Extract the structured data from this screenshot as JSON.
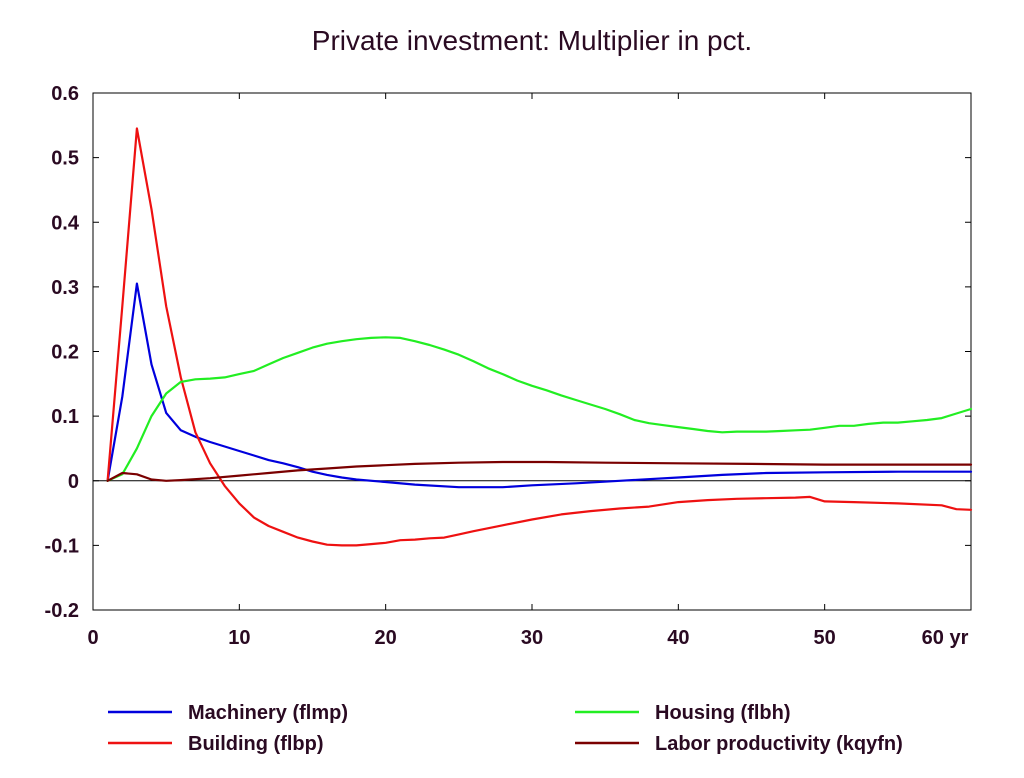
{
  "chart_data": {
    "type": "line",
    "title": "Private investment: Multiplier in pct.",
    "xlabel": "",
    "ylabel": "",
    "x_unit_label": "yr",
    "xlim": [
      0,
      60
    ],
    "ylim": [
      -0.2,
      0.6
    ],
    "x_ticks": [
      0,
      10,
      20,
      30,
      40,
      50,
      60
    ],
    "x_tick_labels": [
      "0",
      "10",
      "20",
      "30",
      "40",
      "50",
      "60 yr"
    ],
    "y_ticks": [
      0.6,
      0.5,
      0.4,
      0.3,
      0.2,
      0.1,
      0,
      -0.1,
      -0.2
    ],
    "y_tick_labels": [
      "0.6",
      "0.5",
      "0.4",
      "0.3",
      "0.2",
      "0.1",
      "0",
      "-0.1",
      "-0.2"
    ],
    "grid": false,
    "zero_line": true,
    "legend_position": "bottom",
    "series": [
      {
        "name": "Machinery (flmp)",
        "color": "#0000dd",
        "points": [
          [
            1,
            0
          ],
          [
            2,
            0.13
          ],
          [
            3,
            0.305
          ],
          [
            4,
            0.18
          ],
          [
            5,
            0.105
          ],
          [
            6,
            0.078
          ],
          [
            7,
            0.068
          ],
          [
            8,
            0.06
          ],
          [
            9,
            0.053
          ],
          [
            10,
            0.046
          ],
          [
            11,
            0.039
          ],
          [
            12,
            0.032
          ],
          [
            13,
            0.027
          ],
          [
            14,
            0.021
          ],
          [
            15,
            0.014
          ],
          [
            16,
            0.009
          ],
          [
            17,
            0.005
          ],
          [
            18,
            0.002
          ],
          [
            20,
            -0.002
          ],
          [
            22,
            -0.006
          ],
          [
            25,
            -0.01
          ],
          [
            28,
            -0.01
          ],
          [
            30,
            -0.007
          ],
          [
            33,
            -0.004
          ],
          [
            36,
            0.0
          ],
          [
            40,
            0.005
          ],
          [
            43,
            0.009
          ],
          [
            46,
            0.012
          ],
          [
            50,
            0.013
          ],
          [
            55,
            0.014
          ],
          [
            60,
            0.014
          ]
        ]
      },
      {
        "name": "Building (flbp)",
        "color": "#ee1111",
        "points": [
          [
            1,
            0
          ],
          [
            2,
            0.27
          ],
          [
            3,
            0.545
          ],
          [
            4,
            0.42
          ],
          [
            5,
            0.27
          ],
          [
            6,
            0.16
          ],
          [
            7,
            0.075
          ],
          [
            8,
            0.027
          ],
          [
            9,
            -0.008
          ],
          [
            10,
            -0.035
          ],
          [
            11,
            -0.057
          ],
          [
            12,
            -0.07
          ],
          [
            13,
            -0.079
          ],
          [
            14,
            -0.088
          ],
          [
            15,
            -0.094
          ],
          [
            16,
            -0.099
          ],
          [
            17,
            -0.1
          ],
          [
            18,
            -0.1
          ],
          [
            19,
            -0.098
          ],
          [
            20,
            -0.096
          ],
          [
            21,
            -0.092
          ],
          [
            22,
            -0.091
          ],
          [
            23,
            -0.089
          ],
          [
            24,
            -0.088
          ],
          [
            25,
            -0.083
          ],
          [
            26,
            -0.078
          ],
          [
            28,
            -0.069
          ],
          [
            30,
            -0.06
          ],
          [
            32,
            -0.052
          ],
          [
            34,
            -0.047
          ],
          [
            36,
            -0.043
          ],
          [
            38,
            -0.04
          ],
          [
            40,
            -0.033
          ],
          [
            42,
            -0.03
          ],
          [
            44,
            -0.028
          ],
          [
            46,
            -0.027
          ],
          [
            48,
            -0.026
          ],
          [
            49,
            -0.025
          ],
          [
            50,
            -0.032
          ],
          [
            52,
            -0.033
          ],
          [
            55,
            -0.035
          ],
          [
            58,
            -0.038
          ],
          [
            59,
            -0.044
          ],
          [
            60,
            -0.045
          ]
        ]
      },
      {
        "name": "Housing (flbh)",
        "color": "#22ee22",
        "points": [
          [
            1,
            0
          ],
          [
            2,
            0.01
          ],
          [
            3,
            0.05
          ],
          [
            4,
            0.1
          ],
          [
            5,
            0.135
          ],
          [
            6,
            0.153
          ],
          [
            7,
            0.157
          ],
          [
            8,
            0.158
          ],
          [
            9,
            0.16
          ],
          [
            10,
            0.165
          ],
          [
            11,
            0.17
          ],
          [
            12,
            0.18
          ],
          [
            13,
            0.19
          ],
          [
            14,
            0.198
          ],
          [
            15,
            0.206
          ],
          [
            16,
            0.212
          ],
          [
            17,
            0.216
          ],
          [
            18,
            0.219
          ],
          [
            19,
            0.221
          ],
          [
            20,
            0.222
          ],
          [
            21,
            0.221
          ],
          [
            22,
            0.216
          ],
          [
            23,
            0.21
          ],
          [
            24,
            0.203
          ],
          [
            25,
            0.195
          ],
          [
            26,
            0.185
          ],
          [
            27,
            0.174
          ],
          [
            28,
            0.165
          ],
          [
            29,
            0.155
          ],
          [
            30,
            0.147
          ],
          [
            31,
            0.14
          ],
          [
            32,
            0.132
          ],
          [
            33,
            0.125
          ],
          [
            34,
            0.118
          ],
          [
            35,
            0.111
          ],
          [
            36,
            0.103
          ],
          [
            37,
            0.094
          ],
          [
            38,
            0.089
          ],
          [
            39,
            0.086
          ],
          [
            40,
            0.083
          ],
          [
            41,
            0.08
          ],
          [
            42,
            0.077
          ],
          [
            43,
            0.075
          ],
          [
            44,
            0.076
          ],
          [
            45,
            0.076
          ],
          [
            46,
            0.076
          ],
          [
            47,
            0.077
          ],
          [
            48,
            0.078
          ],
          [
            49,
            0.079
          ],
          [
            50,
            0.082
          ],
          [
            51,
            0.085
          ],
          [
            52,
            0.085
          ],
          [
            53,
            0.088
          ],
          [
            54,
            0.09
          ],
          [
            55,
            0.09
          ],
          [
            56,
            0.092
          ],
          [
            57,
            0.094
          ],
          [
            58,
            0.097
          ],
          [
            59,
            0.104
          ],
          [
            60,
            0.111
          ]
        ]
      },
      {
        "name": "Labor productivity (kqyfn)",
        "color": "#7a0000",
        "points": [
          [
            1,
            0
          ],
          [
            2,
            0.012
          ],
          [
            3,
            0.01
          ],
          [
            4,
            0.002
          ],
          [
            5,
            0.0
          ],
          [
            6,
            0.001
          ],
          [
            8,
            0.004
          ],
          [
            10,
            0.008
          ],
          [
            12,
            0.012
          ],
          [
            14,
            0.016
          ],
          [
            16,
            0.019
          ],
          [
            18,
            0.022
          ],
          [
            20,
            0.024
          ],
          [
            22,
            0.026
          ],
          [
            25,
            0.028
          ],
          [
            28,
            0.029
          ],
          [
            31,
            0.029
          ],
          [
            35,
            0.028
          ],
          [
            40,
            0.027
          ],
          [
            45,
            0.026
          ],
          [
            50,
            0.025
          ],
          [
            55,
            0.025
          ],
          [
            60,
            0.025
          ]
        ]
      }
    ]
  }
}
